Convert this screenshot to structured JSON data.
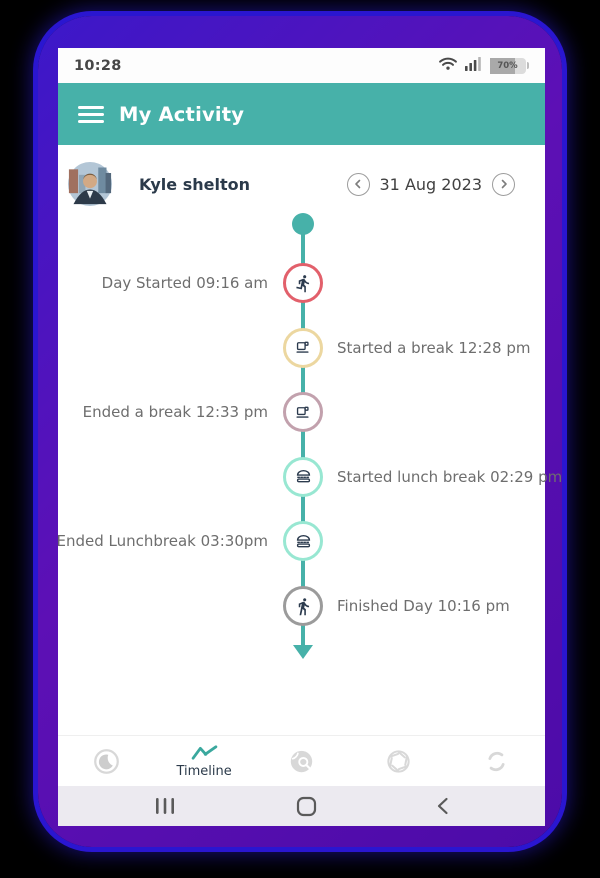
{
  "status_bar": {
    "time": "10:28",
    "battery_percent": "70%"
  },
  "header": {
    "title": "My Activity"
  },
  "profile": {
    "name": "Kyle shelton",
    "date": "31 Aug 2023"
  },
  "timeline": {
    "events": [
      {
        "label": "Day Started 09:16 am",
        "side": "left",
        "icon": "runner-icon",
        "border_color": "#e2606b"
      },
      {
        "label": "Started a break 12:28 pm",
        "side": "right",
        "icon": "coffee-icon",
        "border_color": "#ecd7a0"
      },
      {
        "label": "Ended a break 12:33 pm",
        "side": "left",
        "icon": "coffee-icon",
        "border_color": "#c2a1ad"
      },
      {
        "label": "Started lunch break 02:29 pm",
        "side": "right",
        "icon": "burger-icon",
        "border_color": "#98e7d2"
      },
      {
        "label": "Ended Lunchbreak 03:30pm",
        "side": "left",
        "icon": "burger-icon",
        "border_color": "#98e7d2"
      },
      {
        "label": "Finished Day 10:16 pm",
        "side": "right",
        "icon": "walker-icon",
        "border_color": "#9b9b9b"
      }
    ]
  },
  "bottom_nav": {
    "items": [
      {
        "name": "moon",
        "icon": "moon-icon",
        "label": "",
        "active": false
      },
      {
        "name": "timeline",
        "icon": "chart-line-icon",
        "label": "Timeline",
        "active": true
      },
      {
        "name": "search",
        "icon": "globe-search-icon",
        "label": "",
        "active": false
      },
      {
        "name": "camera",
        "icon": "shutter-icon",
        "label": "",
        "active": false
      },
      {
        "name": "sync",
        "icon": "sync-icon",
        "label": "",
        "active": false
      }
    ]
  },
  "colors": {
    "accent_teal": "#47b1a9",
    "glyph_navy": "#2c3b4e",
    "bezel_purple": "#5410b4",
    "glow_blue": "#2a16d0",
    "label_gray": "#6e6e6e"
  }
}
